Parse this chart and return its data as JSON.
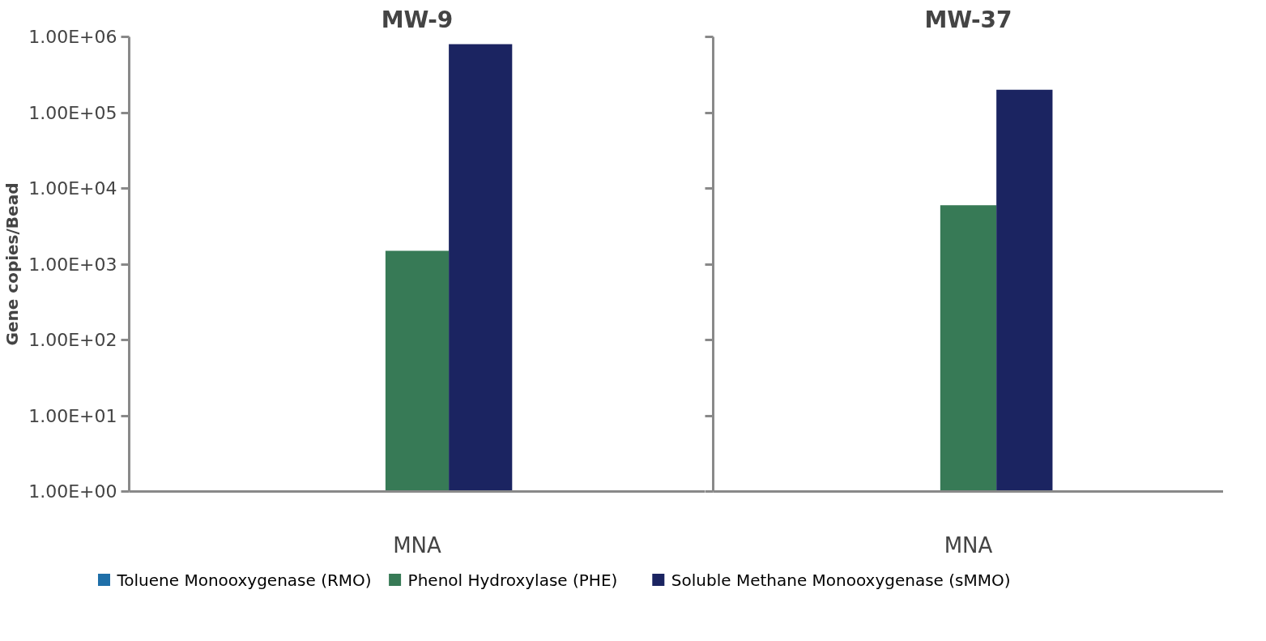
{
  "chart_data": [
    {
      "type": "bar",
      "title": "MW-9",
      "ylabel": "Gene copies/Bead",
      "categories": [
        "MNA"
      ],
      "log": true,
      "grid": false,
      "legend": "bottom",
      "ylim": [
        1,
        1000000
      ],
      "yticks": [
        {
          "value": 1,
          "label": "1.00E+00"
        },
        {
          "value": 10,
          "label": "1.00E+01"
        },
        {
          "value": 100,
          "label": "1.00E+02"
        },
        {
          "value": 1000,
          "label": "1.00E+03"
        },
        {
          "value": 10000,
          "label": "1.00E+04"
        },
        {
          "value": 100000,
          "label": "1.00E+05"
        },
        {
          "value": 1000000,
          "label": "1.00E+06"
        }
      ],
      "series": [
        {
          "name": "Toluene Monooxygenase (RMO)",
          "color": "#1f6fa8",
          "values": [
            null
          ]
        },
        {
          "name": "Phenol Hydroxylase (PHE)",
          "color": "#377a56",
          "values": [
            1500
          ]
        },
        {
          "name": "Soluble Methane Monooxygenase (sMMO)",
          "color": "#1b2461",
          "values": [
            800000
          ]
        }
      ]
    },
    {
      "type": "bar",
      "title": "MW-37",
      "categories": [
        "MNA"
      ],
      "log": true,
      "grid": false,
      "tick_labels": "x",
      "ylim": [
        1,
        1000000
      ],
      "yticks": [
        {
          "value": 1,
          "label": null
        },
        {
          "value": 10,
          "label": null
        },
        {
          "value": 100,
          "label": null
        },
        {
          "value": 1000,
          "label": null
        },
        {
          "value": 10000,
          "label": null
        },
        {
          "value": 100000,
          "label": null
        },
        {
          "value": 1000000,
          "label": null
        }
      ],
      "series": [
        {
          "values": [
            null
          ]
        },
        {
          "color": "#377a56",
          "values": [
            6000
          ]
        },
        {
          "color": "#1b2461",
          "values": [
            200000
          ]
        }
      ]
    }
  ]
}
